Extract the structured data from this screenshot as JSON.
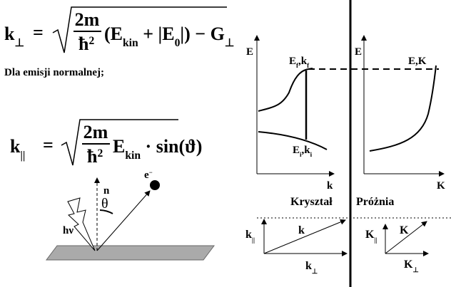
{
  "formula_1": {
    "lhs": "k",
    "lhs_sub": "⊥",
    "eq": "=",
    "numerator": "2m",
    "denominator": "ħ",
    "denominator_sup": "2",
    "open": "(E",
    "kin": "kin",
    "plus": " + |E",
    "zero": "0",
    "close": "|)",
    "minus": " − G",
    "minus_sub": "⊥"
  },
  "caption": "Dla emisji normalnej;",
  "formula_2": {
    "lhs": "k",
    "lhs_sub": "||",
    "eq": "=",
    "numerator": "2m",
    "denominator": "ħ",
    "denominator_sup": "2",
    "energy": "E",
    "kin": "kin",
    "factor": " · sin(ϑ)"
  },
  "illustration": {
    "photon": "hν",
    "normal": "n",
    "electron": "e",
    "electron_sup": "−",
    "angle": "θ"
  },
  "crystal": {
    "axis_y": "E",
    "axis_x": "k",
    "final_e": "E",
    "final_e_sub": "f",
    "final_k": ",k",
    "final_k_sub": "f",
    "initial_e": "E",
    "initial_e_sub": "i",
    "initial_k": ",k",
    "initial_k_sub": "i",
    "region": "Kryształ",
    "vec_parallel": "k",
    "vec_parallel_sub": "||",
    "vec_total": "k",
    "vec_perp": "k",
    "vec_perp_sub": "⊥"
  },
  "vacuum": {
    "axis_y": "E",
    "axis_x": "K",
    "state": "E,K",
    "region": "Próżnia",
    "vec_parallel": "K",
    "vec_parallel_sub": "||",
    "vec_total": "K",
    "vec_perp": "K",
    "vec_perp_sub": "⊥"
  }
}
